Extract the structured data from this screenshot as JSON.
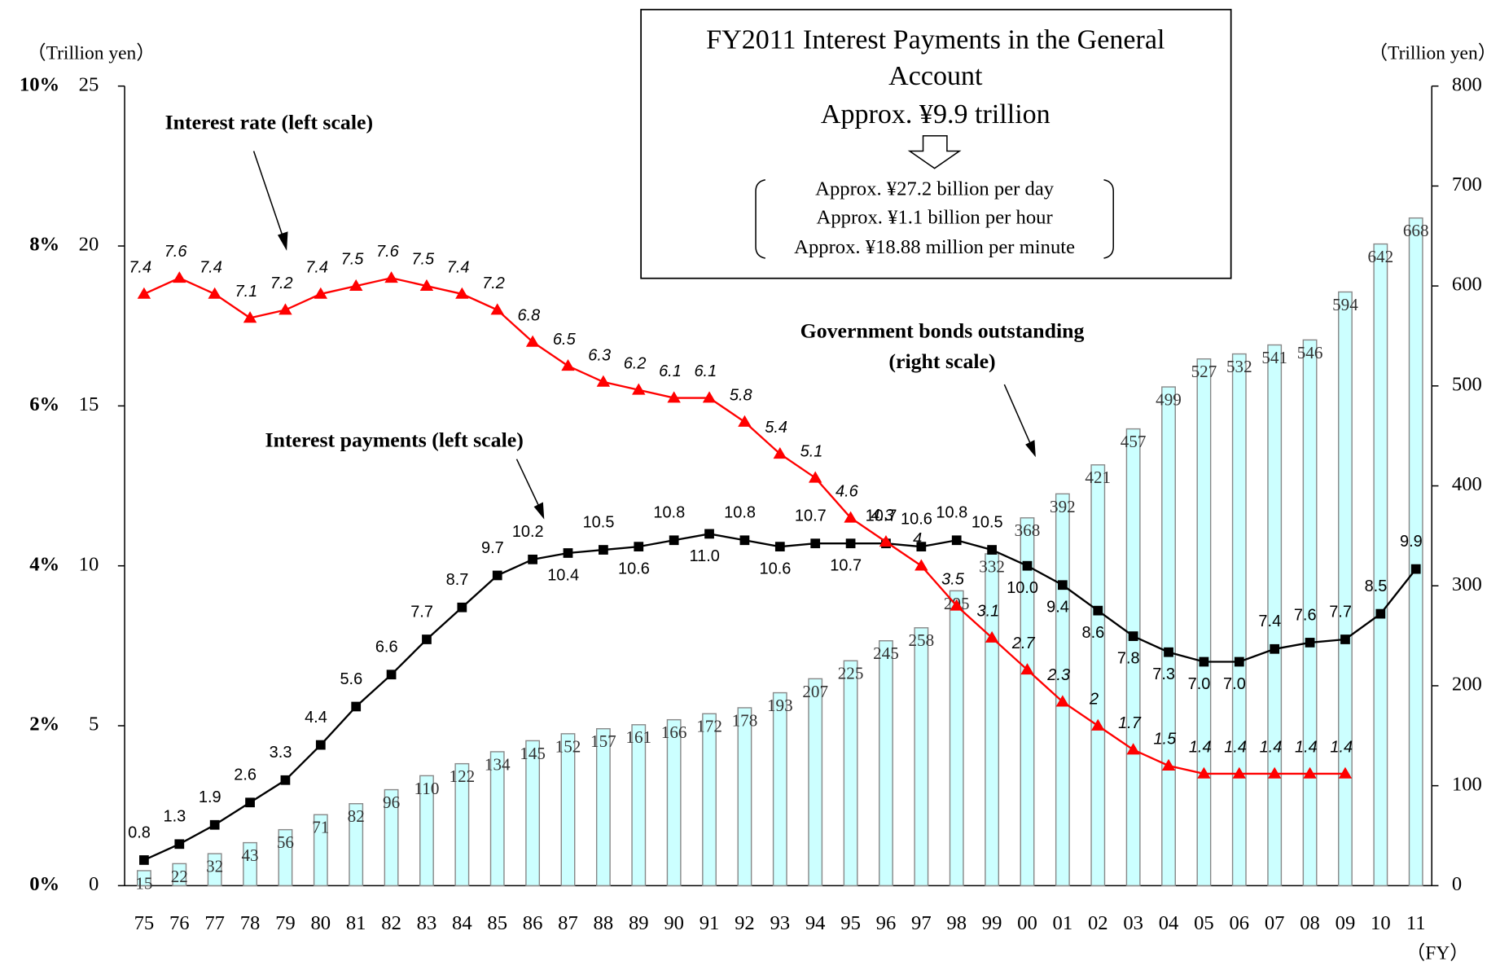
{
  "chart_data": {
    "type": "bar",
    "title": [
      "FY2011 Interest Payments in the General",
      "Account"
    ],
    "subtitle": "Approx. ¥9.9 trillion",
    "box_lines": [
      "Approx. ¥27.2 billion per day",
      "Approx. ¥1.1 billion  per hour",
      "Approx. ¥18.88 million per minute"
    ],
    "ylabel": "（Trillion yen）",
    "y2label": "（Trillion yen）",
    "xlabel": "（FY）",
    "categories": [
      "75",
      "76",
      "77",
      "78",
      "79",
      "80",
      "81",
      "82",
      "83",
      "84",
      "85",
      "86",
      "87",
      "88",
      "89",
      "90",
      "91",
      "92",
      "93",
      "94",
      "95",
      "96",
      "97",
      "98",
      "99",
      "00",
      "01",
      "02",
      "03",
      "04",
      "05",
      "06",
      "07",
      "08",
      "09",
      "10",
      "11"
    ],
    "ylim": [
      0,
      25
    ],
    "yticks": [
      0,
      5,
      10,
      15,
      20,
      25
    ],
    "y3lim": [
      0,
      10
    ],
    "y3ticks": [
      {
        "value": 0,
        "label": "0%"
      },
      {
        "value": 2,
        "label": "2%"
      },
      {
        "value": 4,
        "label": "4%"
      },
      {
        "value": 6,
        "label": "6%"
      },
      {
        "value": 8,
        "label": "8%"
      },
      {
        "value": 10,
        "label": "10%"
      }
    ],
    "y2lim": [
      0,
      800
    ],
    "y2ticks": [
      0,
      100,
      200,
      300,
      400,
      500,
      600,
      700,
      800
    ],
    "series": [
      {
        "name": "Government bonds outstanding (right scale)",
        "type": "bar",
        "axis": "y2",
        "color": "#ccffff",
        "values": [
          15,
          22,
          32,
          43,
          56,
          71,
          82,
          96,
          110,
          122,
          134,
          145,
          152,
          157,
          161,
          166,
          172,
          178,
          193,
          207,
          225,
          245,
          258,
          295,
          332,
          368,
          392,
          421,
          457,
          499,
          527,
          532,
          541,
          546,
          594,
          642,
          668
        ]
      },
      {
        "name": "Interest payments (left scale)",
        "type": "line",
        "axis": "y",
        "color": "#000000",
        "values": [
          0.8,
          1.3,
          1.9,
          2.6,
          3.3,
          4.4,
          5.6,
          6.6,
          7.7,
          8.7,
          9.7,
          10.2,
          10.4,
          10.5,
          10.6,
          10.8,
          11.0,
          10.8,
          10.6,
          10.7,
          10.7,
          10.7,
          10.6,
          10.8,
          10.5,
          10.0,
          9.4,
          8.6,
          7.8,
          7.3,
          7.0,
          7.0,
          7.4,
          7.6,
          7.7,
          8.5,
          9.9
        ],
        "value_labels": [
          "0.8",
          "1.3",
          "1.9",
          "2.6",
          "3.3",
          "4.4",
          "5.6",
          "6.6",
          "7.7",
          "8.7",
          "9.7",
          "10.2",
          "10.4",
          "10.5",
          "10.6",
          "10.8",
          "11.0",
          "10.8",
          "10.6",
          "10.7",
          "10.7",
          "10.7",
          "10.6",
          "10.8",
          "10.5",
          "10.0",
          "9.4",
          "8.6",
          "7.8",
          "7.3",
          "7.0",
          "7.0",
          "7.4",
          "7.6",
          "7.7",
          "8.5",
          "9.9"
        ]
      },
      {
        "name": "Interest rate (left scale)",
        "type": "line",
        "axis": "y3",
        "color": "#ff0000",
        "values": [
          7.4,
          7.6,
          7.4,
          7.1,
          7.2,
          7.4,
          7.5,
          7.6,
          7.5,
          7.4,
          7.2,
          6.8,
          6.5,
          6.3,
          6.2,
          6.1,
          6.1,
          5.8,
          5.4,
          5.1,
          4.6,
          4.3,
          4.0,
          3.5,
          3.1,
          2.7,
          2.3,
          2.0,
          1.7,
          1.5,
          1.4,
          1.4,
          1.4,
          1.4,
          1.4,
          null,
          null
        ]
      }
    ]
  }
}
